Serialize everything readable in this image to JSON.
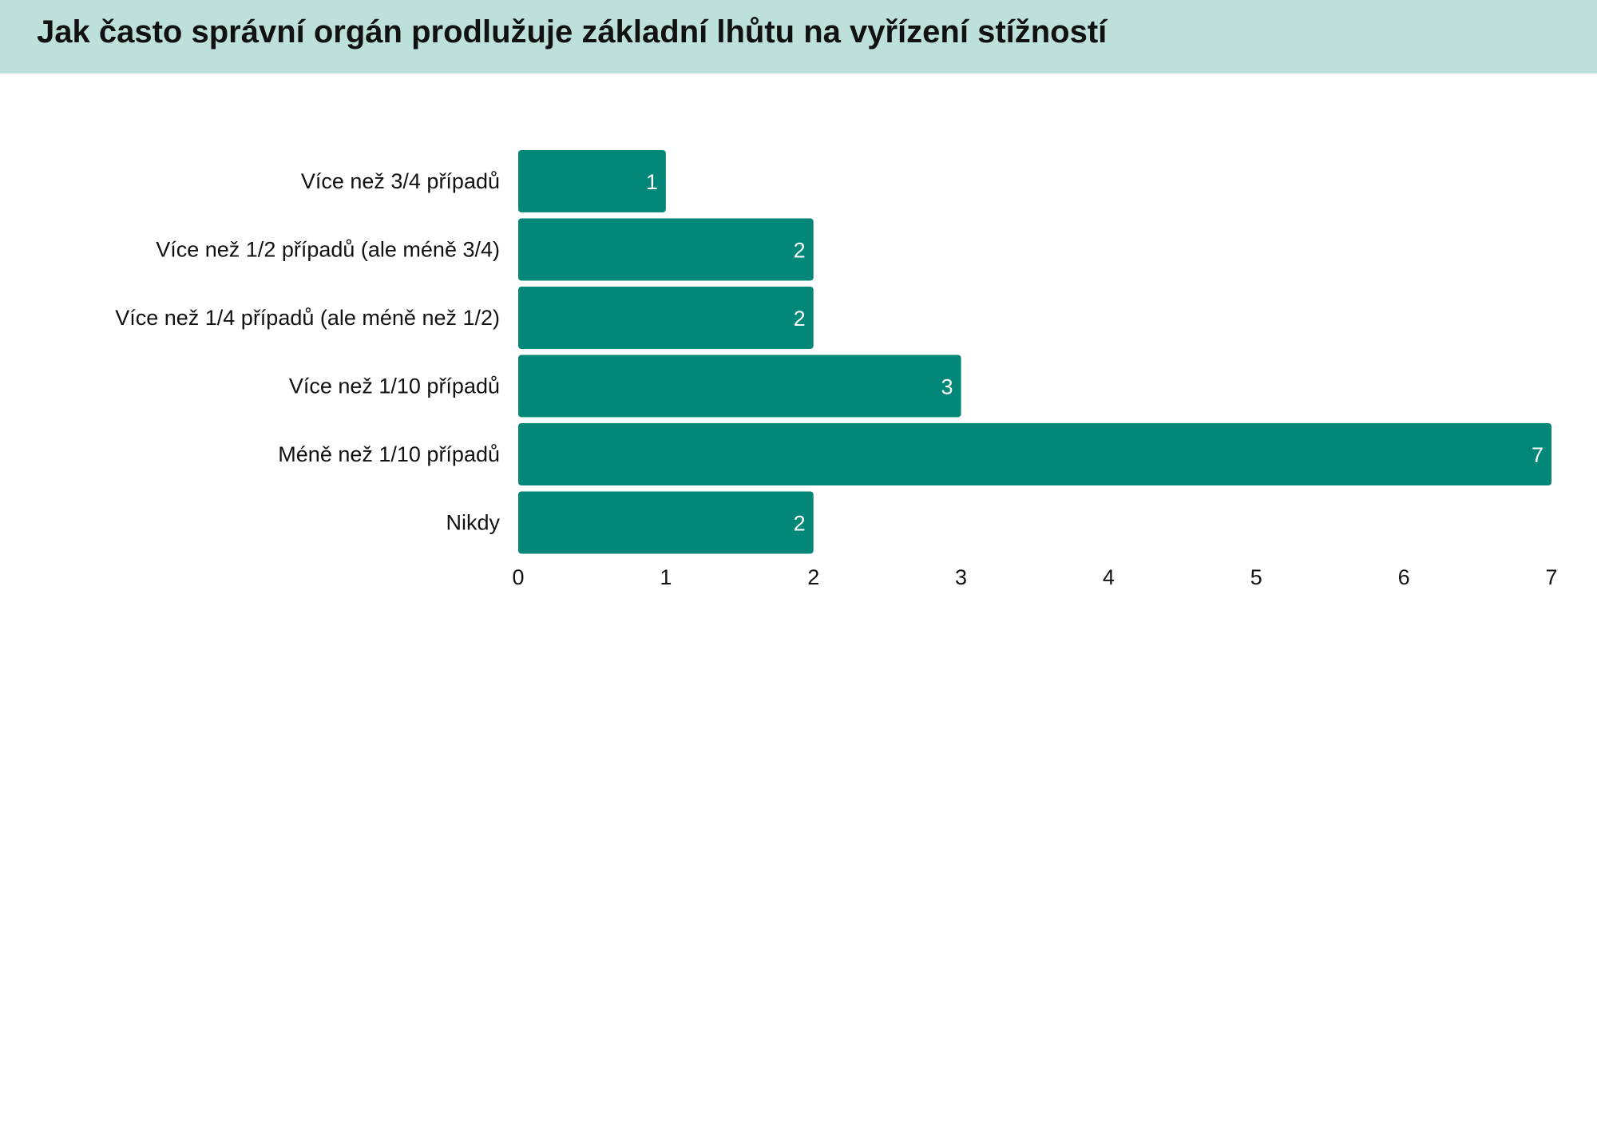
{
  "header": {
    "title": "Jak často správní orgán prodlužuje základní lhůtu na vyřízení stížností"
  },
  "colors": {
    "header_bg": "#bde0db",
    "bar": "#038778",
    "text": "#111111",
    "value_text": "#ffffff"
  },
  "chart_data": {
    "type": "bar",
    "orientation": "horizontal",
    "categories": [
      "Více než 3/4 případů",
      "Více než 1/2 případů (ale méně 3/4)",
      "Více než 1/4 případů (ale méně než 1/2)",
      "Více než 1/10 případů",
      "Méně než 1/10 případů",
      "Nikdy"
    ],
    "values": [
      1,
      2,
      2,
      3,
      7,
      2
    ],
    "title": "Jak často správní orgán prodlužuje základní lhůtu na vyřízení stížností",
    "xlabel": "",
    "ylabel": "",
    "xlim": [
      0,
      7
    ],
    "xticks": [
      0,
      1,
      2,
      3,
      4,
      5,
      6,
      7
    ],
    "grid": false,
    "legend": "none",
    "data_labels": true
  }
}
